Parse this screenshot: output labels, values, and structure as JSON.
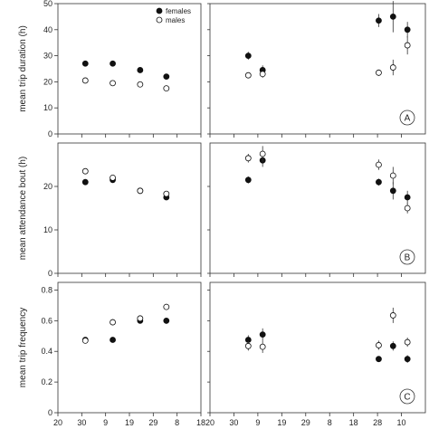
{
  "chart_data": {
    "type": "scatter",
    "layout": "3 rows x 2 columns, shared x-axis ticks per column",
    "legend": {
      "placement": "top-left panel, top-right",
      "entries": [
        {
          "label": "females",
          "marker": "filled-circle"
        },
        {
          "label": "males",
          "marker": "open-circle"
        }
      ]
    },
    "x_axis": {
      "label": "",
      "left_column_ticks": [
        "20",
        "30",
        "9",
        "19",
        "29",
        "8",
        "18"
      ],
      "right_column_ticks": [
        "20",
        "30",
        "9",
        "19",
        "29",
        "8",
        "18",
        "28",
        "10"
      ]
    },
    "rows": [
      {
        "ylabel": "mean trip duration (h)",
        "ylim": [
          0,
          50
        ],
        "yticks": [
          "0",
          "10",
          "20",
          "30",
          "40",
          "50"
        ],
        "panel_letter": "A",
        "left": {
          "females": [
            {
              "x": 1.15,
              "y": 27,
              "err": 0.8
            },
            {
              "x": 2.3,
              "y": 27,
              "err": 0.8
            },
            {
              "x": 3.45,
              "y": 24.5,
              "err": 0.8
            },
            {
              "x": 4.55,
              "y": 22,
              "err": 0.8
            }
          ],
          "males": [
            {
              "x": 1.15,
              "y": 20.5,
              "err": 0.6
            },
            {
              "x": 2.3,
              "y": 19.5,
              "err": 0.6
            },
            {
              "x": 3.45,
              "y": 19,
              "err": 0.6
            },
            {
              "x": 4.55,
              "y": 17.5,
              "err": 0.6
            }
          ]
        },
        "right": {
          "females": [
            {
              "x": 1.6,
              "y": 30,
              "err": 1.5
            },
            {
              "x": 2.2,
              "y": 24.5,
              "err": 1.8
            },
            {
              "x": 7.05,
              "y": 43.5,
              "err": 2.5
            },
            {
              "x": 7.65,
              "y": 45,
              "err": 6
            },
            {
              "x": 8.25,
              "y": 40,
              "err": 3
            }
          ],
          "males": [
            {
              "x": 1.6,
              "y": 22.5,
              "err": 1.0
            },
            {
              "x": 2.2,
              "y": 23,
              "err": 1.5
            },
            {
              "x": 7.05,
              "y": 23.5,
              "err": 1.2
            },
            {
              "x": 7.65,
              "y": 25.5,
              "err": 3
            },
            {
              "x": 8.25,
              "y": 34,
              "err": 3.5
            }
          ]
        }
      },
      {
        "ylabel": "mean attendance bout (h)",
        "ylim": [
          0,
          30
        ],
        "yticks": [
          "0",
          "10",
          "20"
        ],
        "panel_letter": "B",
        "left": {
          "females": [
            {
              "x": 1.15,
              "y": 21,
              "err": 0.5
            },
            {
              "x": 2.3,
              "y": 21.5,
              "err": 0.5
            },
            {
              "x": 3.45,
              "y": 19,
              "err": 0.5
            },
            {
              "x": 4.55,
              "y": 17.5,
              "err": 0.5
            }
          ],
          "males": [
            {
              "x": 1.15,
              "y": 23.5,
              "err": 0.6
            },
            {
              "x": 2.3,
              "y": 22,
              "err": 0.6
            },
            {
              "x": 3.45,
              "y": 19,
              "err": 0.6
            },
            {
              "x": 4.55,
              "y": 18.3,
              "err": 0.6
            }
          ]
        },
        "right": {
          "females": [
            {
              "x": 1.6,
              "y": 21.5,
              "err": 0.8
            },
            {
              "x": 2.2,
              "y": 26,
              "err": 1.5
            },
            {
              "x": 7.05,
              "y": 21,
              "err": 0.8
            },
            {
              "x": 7.65,
              "y": 19,
              "err": 2
            },
            {
              "x": 8.25,
              "y": 17.5,
              "err": 1.5
            }
          ],
          "males": [
            {
              "x": 1.6,
              "y": 26.5,
              "err": 1.0
            },
            {
              "x": 2.2,
              "y": 27.5,
              "err": 1.8
            },
            {
              "x": 7.05,
              "y": 25,
              "err": 1.2
            },
            {
              "x": 7.65,
              "y": 22.5,
              "err": 2
            },
            {
              "x": 8.25,
              "y": 15,
              "err": 1.2
            }
          ]
        }
      },
      {
        "ylabel": "mean trip frequency",
        "ylim": [
          0,
          0.85
        ],
        "yticks": [
          "0",
          "0.2",
          "0.4",
          "0.6",
          "0.8"
        ],
        "panel_letter": "C",
        "left": {
          "females": [
            {
              "x": 1.15,
              "y": 0.475,
              "err": 0.015
            },
            {
              "x": 2.3,
              "y": 0.475,
              "err": 0.012
            },
            {
              "x": 3.45,
              "y": 0.6,
              "err": 0.015
            },
            {
              "x": 4.55,
              "y": 0.6,
              "err": 0.02
            }
          ],
          "males": [
            {
              "x": 1.15,
              "y": 0.47,
              "err": 0.015
            },
            {
              "x": 2.3,
              "y": 0.59,
              "err": 0.02
            },
            {
              "x": 3.45,
              "y": 0.615,
              "err": 0.015
            },
            {
              "x": 4.55,
              "y": 0.69,
              "err": 0.02
            }
          ]
        },
        "right": {
          "females": [
            {
              "x": 1.6,
              "y": 0.475,
              "err": 0.03
            },
            {
              "x": 2.2,
              "y": 0.51,
              "err": 0.04
            },
            {
              "x": 7.05,
              "y": 0.35,
              "err": 0.015
            },
            {
              "x": 7.65,
              "y": 0.435,
              "err": 0.03
            },
            {
              "x": 8.25,
              "y": 0.35,
              "err": 0.025
            }
          ],
          "males": [
            {
              "x": 1.6,
              "y": 0.435,
              "err": 0.03
            },
            {
              "x": 2.2,
              "y": 0.43,
              "err": 0.04
            },
            {
              "x": 7.05,
              "y": 0.44,
              "err": 0.03
            },
            {
              "x": 7.65,
              "y": 0.635,
              "err": 0.05
            },
            {
              "x": 8.25,
              "y": 0.46,
              "err": 0.03
            }
          ]
        }
      }
    ]
  }
}
